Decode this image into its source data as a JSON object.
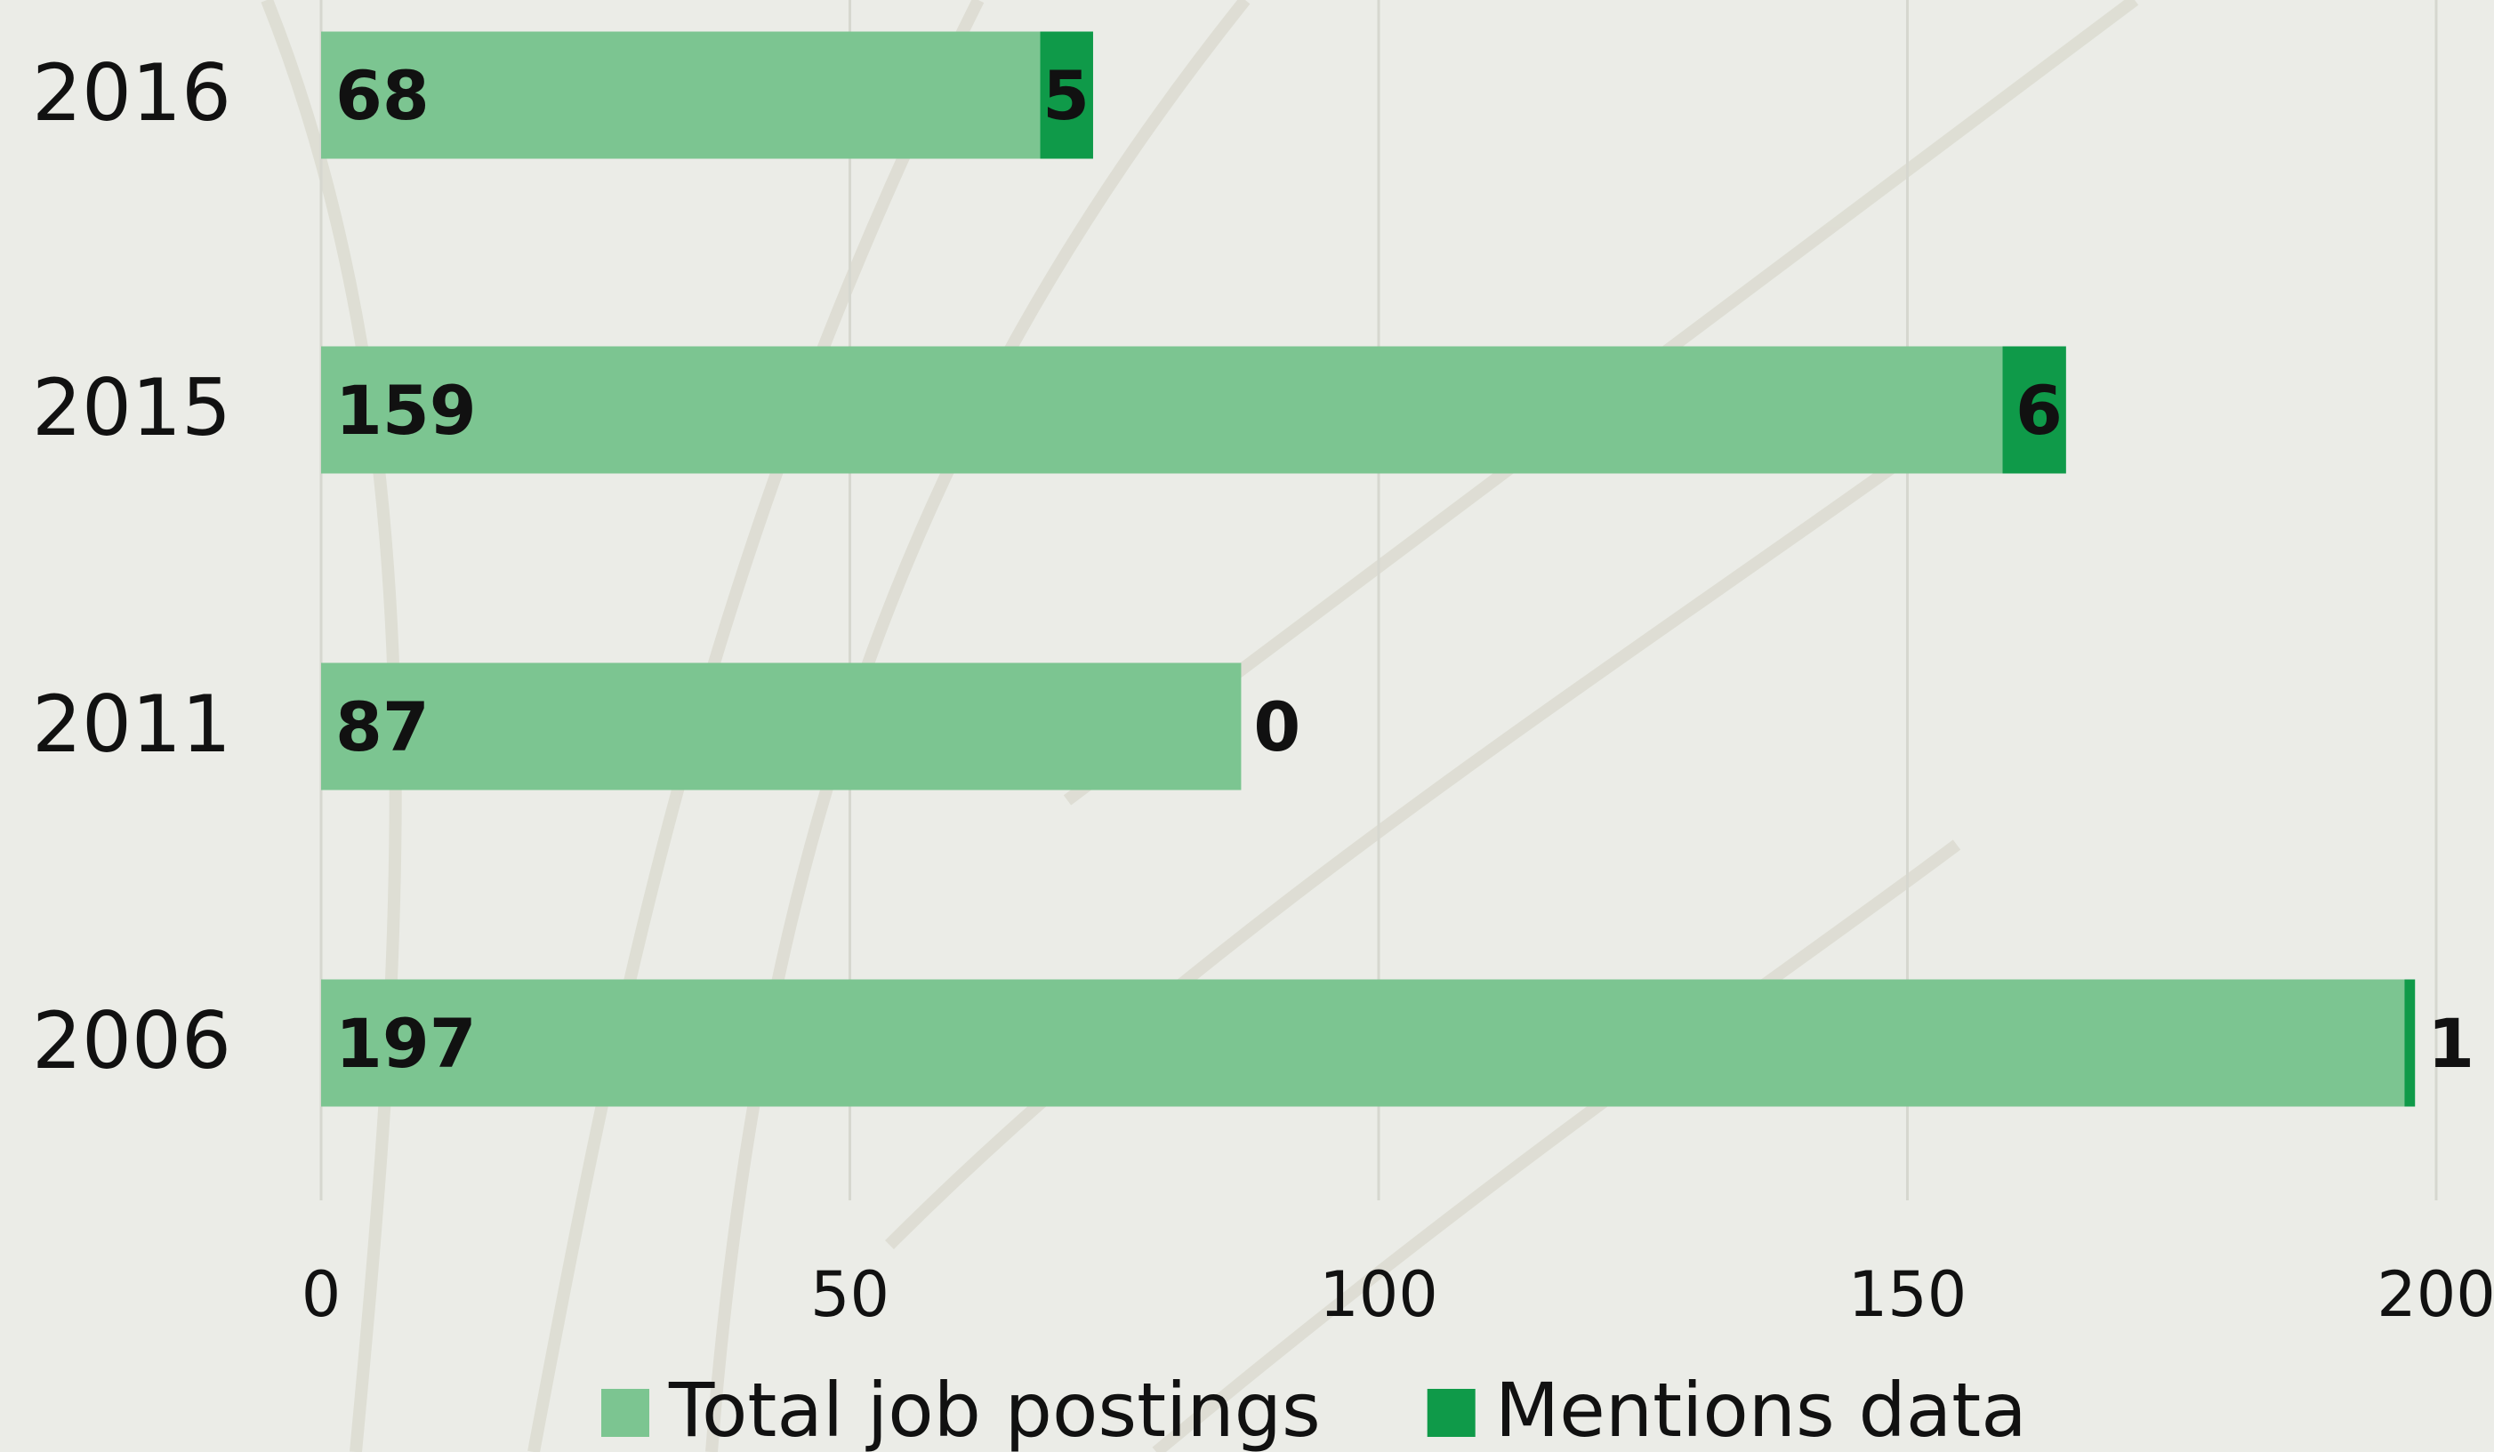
{
  "chart_data": {
    "type": "stacked-barh",
    "categories": [
      "2016",
      "2015",
      "2011",
      "2006"
    ],
    "series": [
      {
        "name": "Total job postings",
        "color": "#7cc591",
        "values": [
          68,
          159,
          87,
          197
        ]
      },
      {
        "name": "Mentions data",
        "color": "#0f9a49",
        "values": [
          5,
          6,
          0,
          1
        ]
      }
    ],
    "xlim": [
      0,
      200
    ],
    "xticks": [
      0,
      50,
      100,
      150,
      200
    ],
    "grid": true,
    "legend": "bottom"
  }
}
